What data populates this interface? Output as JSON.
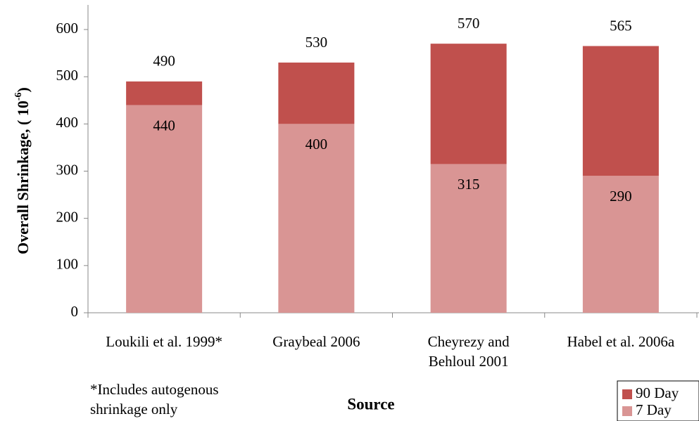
{
  "chart_data": {
    "type": "stacked_bar",
    "categories": [
      "Loukili et al. 1999*",
      "Graybeal 2006",
      "Cheyrezy and Behloul 2001",
      "Habel et al. 2006a"
    ],
    "series": [
      {
        "name": "7 Day",
        "color": "#d99594",
        "values": [
          440,
          400,
          315,
          290
        ]
      },
      {
        "name": "90 Day",
        "color": "#c0504d",
        "values": [
          50,
          130,
          255,
          275
        ]
      }
    ],
    "totals": [
      490,
      530,
      570,
      565
    ],
    "ylim": [
      0,
      600
    ],
    "yticks": [
      0,
      100,
      200,
      300,
      400,
      500,
      600
    ],
    "y_label_parts": [
      "Overall Shrinkage, ( 10",
      "-6",
      ")"
    ],
    "x_label": "Source",
    "note": "*Includes autogenous shrinkage only",
    "legend": "bottom-right"
  }
}
